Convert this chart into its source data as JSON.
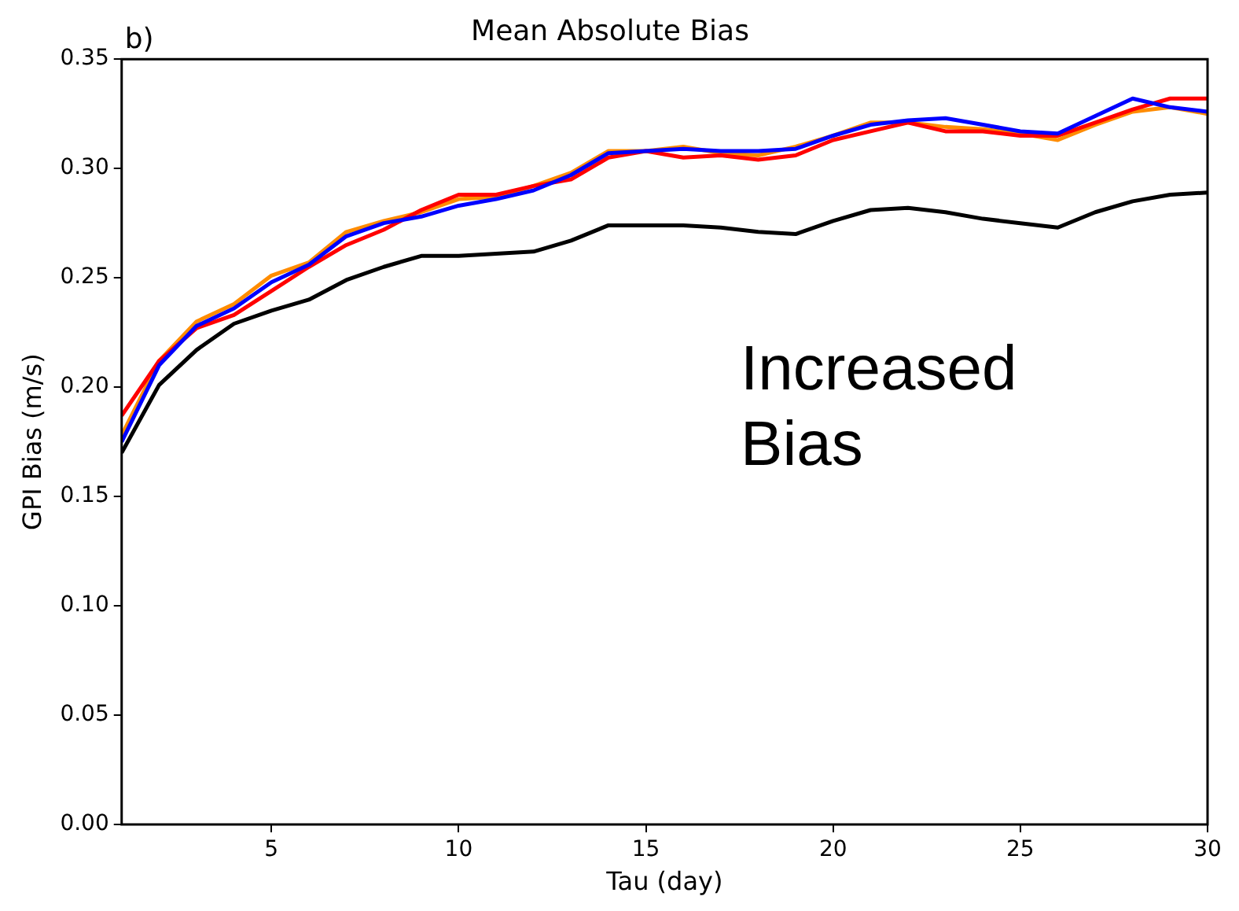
{
  "chart_data": {
    "type": "line",
    "title": "Mean Absolute Bias",
    "xlabel": "Tau (day)",
    "ylabel": "GPI Bias (m/s)",
    "annotations": [
      "b)",
      "Increased Bias"
    ],
    "x": [
      1,
      2,
      3,
      4,
      5,
      6,
      7,
      8,
      9,
      10,
      11,
      12,
      13,
      14,
      15,
      16,
      17,
      18,
      19,
      20,
      21,
      22,
      23,
      24,
      25,
      26,
      27,
      28,
      29,
      30
    ],
    "series": [
      {
        "color": "#000000",
        "values": [
          0.17,
          0.201,
          0.217,
          0.229,
          0.235,
          0.24,
          0.249,
          0.255,
          0.26,
          0.26,
          0.261,
          0.262,
          0.267,
          0.274,
          0.274,
          0.274,
          0.273,
          0.271,
          0.27,
          0.276,
          0.281,
          0.282,
          0.28,
          0.277,
          0.275,
          0.273,
          0.28,
          0.285,
          0.288,
          0.289
        ]
      },
      {
        "color": "#0000ff",
        "values": [
          0.175,
          0.21,
          0.228,
          0.236,
          0.248,
          0.256,
          0.269,
          0.275,
          0.278,
          0.283,
          0.286,
          0.29,
          0.297,
          0.307,
          0.308,
          0.309,
          0.308,
          0.308,
          0.309,
          0.315,
          0.32,
          0.322,
          0.323,
          0.32,
          0.317,
          0.316,
          0.324,
          0.332,
          0.328,
          0.326
        ]
      },
      {
        "color": "#ff0000",
        "values": [
          0.187,
          0.212,
          0.227,
          0.233,
          0.244,
          0.255,
          0.265,
          0.272,
          0.281,
          0.288,
          0.288,
          0.292,
          0.295,
          0.305,
          0.308,
          0.305,
          0.306,
          0.304,
          0.306,
          0.313,
          0.317,
          0.321,
          0.317,
          0.317,
          0.315,
          0.315,
          0.321,
          0.327,
          0.332,
          0.332
        ]
      },
      {
        "color": "#ff8c00",
        "values": [
          0.178,
          0.212,
          0.23,
          0.238,
          0.251,
          0.257,
          0.271,
          0.276,
          0.28,
          0.286,
          0.287,
          0.292,
          0.298,
          0.308,
          0.308,
          0.31,
          0.307,
          0.306,
          0.31,
          0.315,
          0.321,
          0.321,
          0.319,
          0.318,
          0.316,
          0.313,
          0.32,
          0.326,
          0.328,
          0.325
        ]
      }
    ],
    "xlim": [
      1,
      30
    ],
    "xticks": [
      5,
      10,
      15,
      20,
      25,
      30
    ],
    "ylim": [
      0,
      0.35
    ],
    "yticks": [
      {
        "value": 0,
        "label": "0.00"
      },
      {
        "value": 0.05,
        "label": "0.05"
      },
      {
        "value": 0.1,
        "label": "0.10"
      },
      {
        "value": 0.15,
        "label": "0.15"
      },
      {
        "value": 0.2,
        "label": "0.20"
      },
      {
        "value": 0.25,
        "label": "0.25"
      },
      {
        "value": 0.3,
        "label": "0.30"
      },
      {
        "value": 0.35,
        "label": "0.35"
      }
    ],
    "grid": false,
    "legend": false,
    "marker": "none",
    "line_style": "solid"
  }
}
